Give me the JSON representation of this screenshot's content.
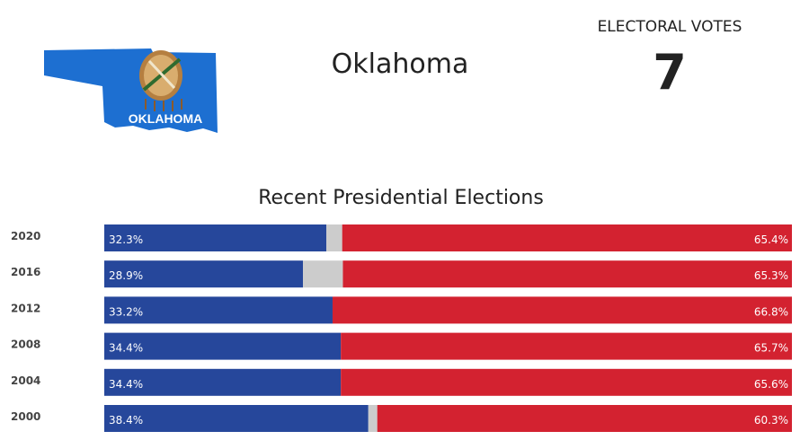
{
  "state": {
    "name": "Oklahoma",
    "map_label": "OKLAHOMA",
    "map_color": "#1d6fd1"
  },
  "electoral": {
    "label": "ELECTORAL VOTES",
    "count": "7"
  },
  "chart_data": {
    "type": "bar",
    "title": "Recent Presidential Elections",
    "orientation": "horizontal-stacked",
    "categories": [
      "2020",
      "2016",
      "2012",
      "2008",
      "2004",
      "2000"
    ],
    "series": [
      {
        "color": "#26479b",
        "values": [
          32.3,
          28.9,
          33.2,
          34.4,
          34.4,
          38.4
        ],
        "labels": [
          "32.3%",
          "28.9%",
          "33.2%",
          "34.4%",
          "34.4%",
          "38.4%"
        ]
      },
      {
        "color": "#cccccc",
        "values": [
          2.3,
          5.8,
          0.0,
          0.0,
          0.0,
          1.3
        ]
      },
      {
        "color": "#d32230",
        "values": [
          65.4,
          65.3,
          66.8,
          65.7,
          65.6,
          60.3
        ],
        "labels": [
          "65.4%",
          "65.3%",
          "66.8%",
          "65.7%",
          "65.6%",
          "60.3%"
        ]
      }
    ],
    "xlim": [
      0,
      100
    ],
    "grid": false,
    "legend": "none"
  }
}
